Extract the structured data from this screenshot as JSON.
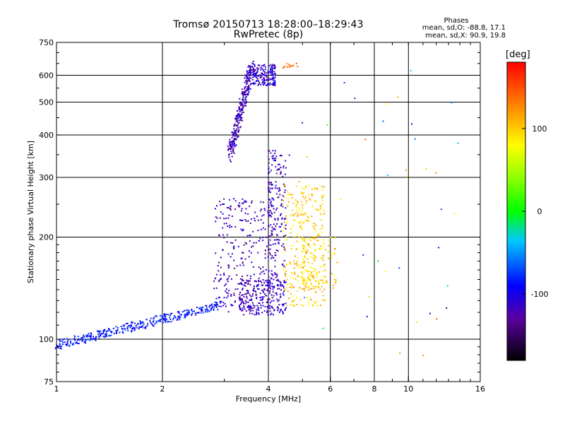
{
  "title_line1": "Tromsø 20150713 18:28:00–18:29:43",
  "title_line2": "RwPretec (8p)",
  "stats": {
    "heading": "Phases",
    "line_o": "mean, sd,O: -88.8, 17.1",
    "line_x": "mean, sd,X:  90.9, 19.8"
  },
  "colorbar": {
    "unit": "[deg]",
    "min": -180,
    "max": 180,
    "ticks": [
      100,
      0,
      -100
    ],
    "tick_labels": [
      "100",
      "0",
      "-100"
    ]
  },
  "chart_data": {
    "type": "scatter",
    "xlabel": "Frequency [MHz]",
    "ylabel": "Stationary phase Virtual Height [km]",
    "xscale": "log",
    "yscale": "log",
    "xlim": [
      1,
      16
    ],
    "ylim": [
      75,
      750
    ],
    "x_ticks": [
      1,
      2,
      4,
      6,
      8,
      10,
      16
    ],
    "x_tick_labels": [
      "1",
      "2",
      "4",
      "6",
      "8",
      "10",
      "16"
    ],
    "y_ticks": [
      75,
      100,
      200,
      300,
      400,
      500,
      600,
      750
    ],
    "y_tick_labels": [
      "75",
      "100",
      "200",
      "300",
      "400",
      "500",
      "600",
      "750"
    ],
    "grid": true,
    "color_variable": "phase [deg]",
    "traces": [
      {
        "f_min": 1.0,
        "f_max": 2.9,
        "h_min": 96,
        "h_max": 126,
        "phase": -85,
        "n": 360,
        "shape": "rising-trace"
      },
      {
        "f_min": 3.1,
        "f_max": 3.6,
        "h_min": 345,
        "h_max": 645,
        "phase": -118,
        "n": 300,
        "shape": "steep-trace"
      },
      {
        "f_min": 3.6,
        "f_max": 4.2,
        "h_min": 560,
        "h_max": 645,
        "phase": -112,
        "n": 160,
        "shape": "band"
      },
      {
        "f_min": 2.8,
        "f_max": 4.0,
        "h_min": 120,
        "h_max": 260,
        "phase": -120,
        "n": 260,
        "shape": "cloud"
      },
      {
        "f_min": 3.3,
        "f_max": 4.5,
        "h_min": 118,
        "h_max": 150,
        "phase": -115,
        "n": 240,
        "shape": "band"
      },
      {
        "f_min": 4.0,
        "f_max": 4.5,
        "h_min": 140,
        "h_max": 360,
        "phase": -118,
        "n": 220,
        "shape": "column"
      },
      {
        "f_min": 4.4,
        "f_max": 5.8,
        "h_min": 125,
        "h_max": 285,
        "phase": 100,
        "n": 300,
        "shape": "cloud"
      },
      {
        "f_min": 5.0,
        "f_max": 6.3,
        "h_min": 140,
        "h_max": 200,
        "phase": 95,
        "n": 120,
        "shape": "column"
      },
      {
        "f_min": 4.4,
        "f_max": 4.9,
        "h_min": 630,
        "h_max": 650,
        "phase": 135,
        "n": 14,
        "shape": "band"
      }
    ]
  }
}
